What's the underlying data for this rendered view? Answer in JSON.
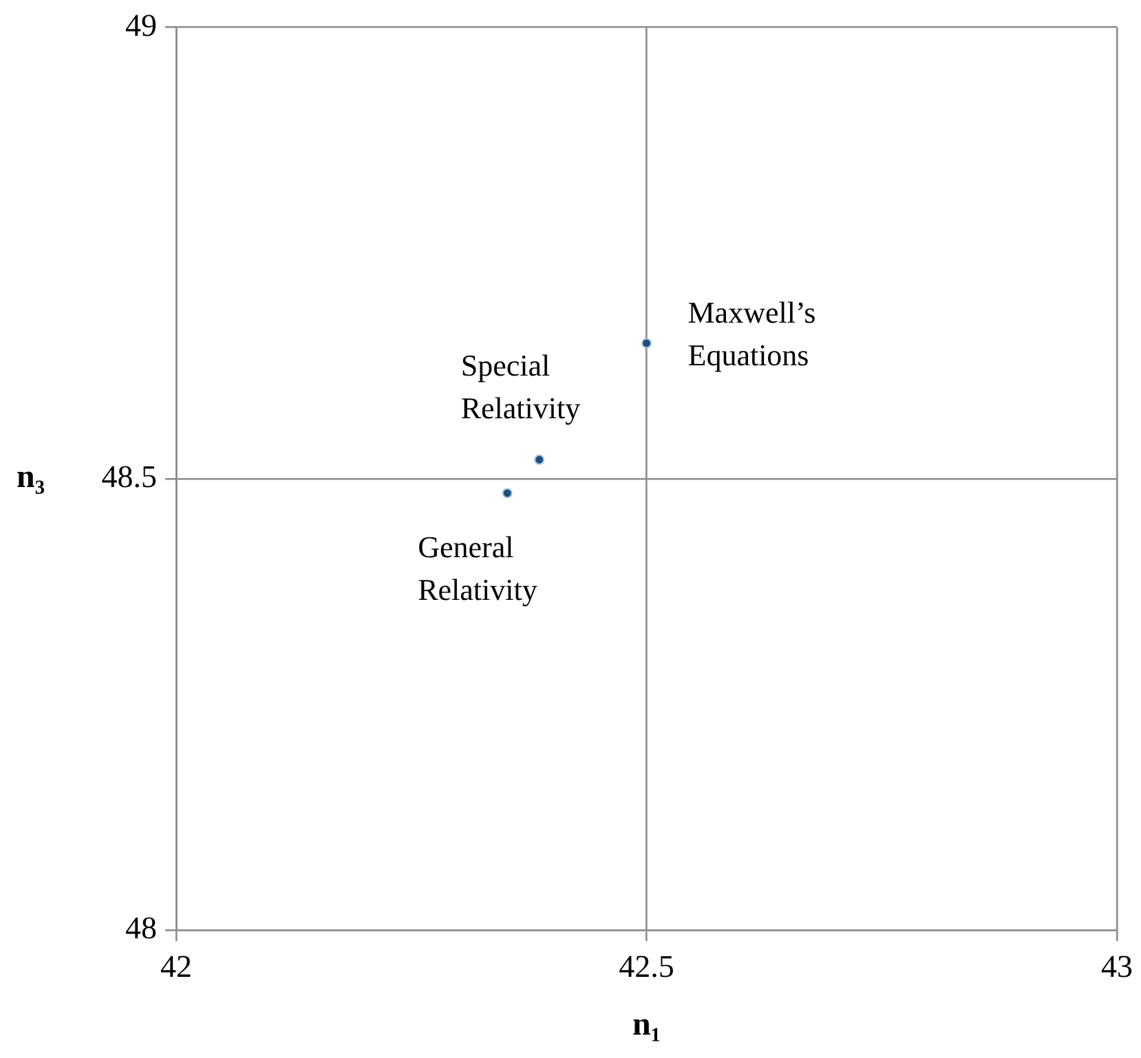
{
  "chart_data": {
    "type": "scatter",
    "xlabel": "n₁",
    "ylabel": "n₃",
    "x": [
      42.352,
      42.386,
      42.5
    ],
    "values": [
      48.484,
      48.521,
      48.65
    ],
    "color": "#1f4e79",
    "marker": "circle",
    "grid": true,
    "legend": false,
    "xlim": [
      42,
      43
    ],
    "xticks": [
      42,
      42.5,
      43
    ],
    "ylim": [
      48,
      49
    ],
    "yticks": [
      48,
      48.5,
      49
    ],
    "annotations": [
      {
        "text": "General\nRelativity",
        "x": 42.352,
        "y": 48.484
      },
      {
        "text": "Special\nRelativity",
        "x": 42.386,
        "y": 48.521
      },
      {
        "text": "Maxwell’s\nEquations",
        "x": 42.5,
        "y": 48.65
      }
    ]
  }
}
